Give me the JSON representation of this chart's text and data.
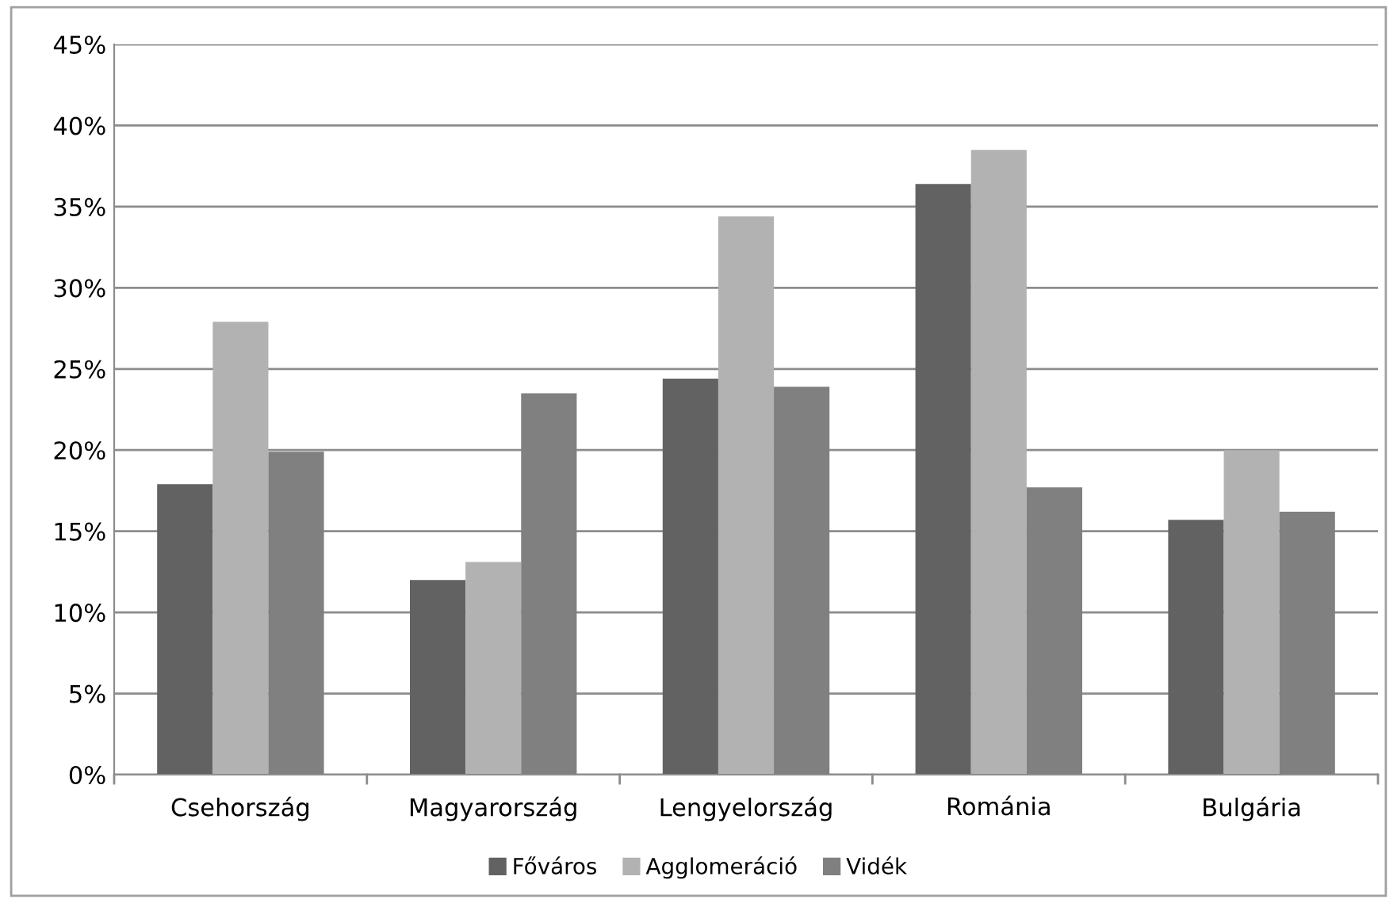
{
  "chart_data": {
    "type": "bar",
    "categories": [
      "Csehország",
      "Magyarország",
      "Lengyelország",
      "Románia",
      "Bulgária"
    ],
    "series": [
      {
        "name": "Főváros",
        "color": "#626262",
        "values": [
          17.9,
          12.0,
          24.4,
          36.4,
          15.7
        ]
      },
      {
        "name": "Agglomeráció",
        "color": "#b2b2b2",
        "values": [
          27.9,
          13.1,
          34.4,
          38.5,
          20.0
        ]
      },
      {
        "name": "Vidék",
        "color": "#808080",
        "values": [
          19.9,
          23.5,
          23.9,
          17.7,
          16.2
        ]
      }
    ],
    "ylim": [
      0,
      45
    ],
    "yticks": [
      {
        "value": 0,
        "label": "0%"
      },
      {
        "value": 5,
        "label": "5%"
      },
      {
        "value": 10,
        "label": "10%"
      },
      {
        "value": 15,
        "label": "15%"
      },
      {
        "value": 20,
        "label": "20%"
      },
      {
        "value": 25,
        "label": "25%"
      },
      {
        "value": 30,
        "label": "30%"
      },
      {
        "value": 35,
        "label": "35%"
      },
      {
        "value": 40,
        "label": "40%"
      },
      {
        "value": 45,
        "label": "45%"
      }
    ],
    "grid": "y",
    "legend": "bottom"
  }
}
